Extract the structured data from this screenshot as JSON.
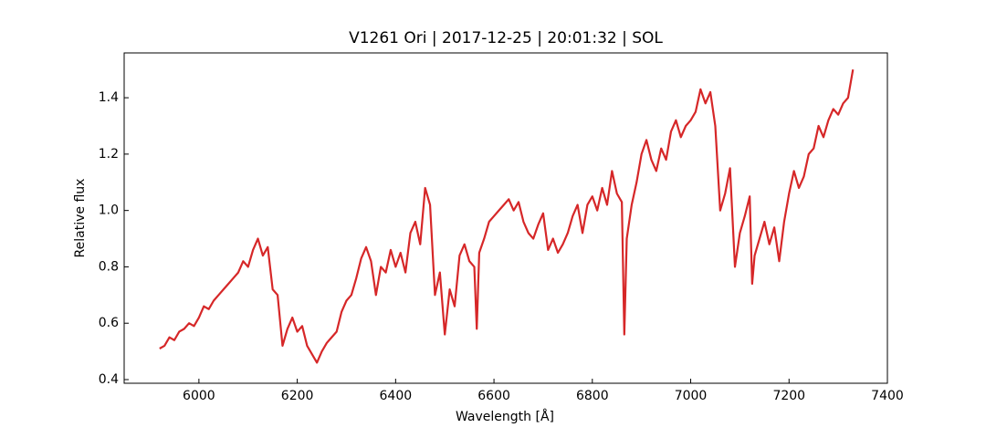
{
  "chart_data": {
    "type": "line",
    "title": "V1261 Ori | 2017-12-25 | 20:01:32 | SOL",
    "x_label": "Wavelength [Å]",
    "y_label": "Relative flux",
    "xlim": [
      5848,
      7400
    ],
    "ylim": [
      0.387,
      1.559
    ],
    "xticks": [
      6000,
      6200,
      6400,
      6600,
      6800,
      7000,
      7200,
      7400
    ],
    "yticks": [
      0.4,
      0.6,
      0.8,
      {
        "value": 1,
        "label": "1.0"
      },
      1.2,
      1.4
    ],
    "grid": false,
    "x": [
      5920,
      5930,
      5940,
      5950,
      5960,
      5970,
      5980,
      5990,
      6000,
      6010,
      6020,
      6030,
      6040,
      6050,
      6060,
      6070,
      6080,
      6090,
      6100,
      6110,
      6120,
      6130,
      6140,
      6150,
      6160,
      6170,
      6180,
      6190,
      6200,
      6210,
      6220,
      6230,
      6240,
      6250,
      6260,
      6270,
      6280,
      6290,
      6300,
      6310,
      6320,
      6330,
      6340,
      6350,
      6360,
      6370,
      6380,
      6390,
      6400,
      6410,
      6420,
      6430,
      6440,
      6450,
      6460,
      6470,
      6480,
      6490,
      6500,
      6510,
      6520,
      6530,
      6540,
      6550,
      6560,
      6565,
      6570,
      6580,
      6590,
      6600,
      6610,
      6620,
      6630,
      6640,
      6650,
      6660,
      6670,
      6680,
      6690,
      6700,
      6710,
      6720,
      6730,
      6740,
      6750,
      6760,
      6770,
      6780,
      6790,
      6800,
      6810,
      6820,
      6830,
      6840,
      6850,
      6860,
      6865,
      6870,
      6880,
      6890,
      6900,
      6910,
      6920,
      6930,
      6940,
      6950,
      6960,
      6970,
      6980,
      6990,
      7000,
      7010,
      7020,
      7030,
      7040,
      7050,
      7060,
      7070,
      7080,
      7090,
      7100,
      7110,
      7120,
      7125,
      7130,
      7140,
      7150,
      7160,
      7170,
      7180,
      7190,
      7200,
      7210,
      7220,
      7230,
      7240,
      7250,
      7260,
      7270,
      7280,
      7290,
      7300,
      7310,
      7320,
      7330
    ],
    "series": [
      {
        "name": "flux",
        "color": "#d62728",
        "values": [
          0.51,
          0.52,
          0.55,
          0.54,
          0.57,
          0.58,
          0.6,
          0.59,
          0.62,
          0.66,
          0.65,
          0.68,
          0.7,
          0.72,
          0.74,
          0.76,
          0.78,
          0.82,
          0.8,
          0.86,
          0.9,
          0.84,
          0.87,
          0.72,
          0.7,
          0.52,
          0.58,
          0.62,
          0.57,
          0.59,
          0.52,
          0.49,
          0.46,
          0.5,
          0.53,
          0.55,
          0.57,
          0.64,
          0.68,
          0.7,
          0.76,
          0.83,
          0.87,
          0.82,
          0.7,
          0.8,
          0.78,
          0.86,
          0.8,
          0.85,
          0.78,
          0.92,
          0.96,
          0.88,
          1.08,
          1.02,
          0.7,
          0.78,
          0.56,
          0.72,
          0.66,
          0.84,
          0.88,
          0.82,
          0.8,
          0.58,
          0.85,
          0.9,
          0.96,
          0.98,
          1.0,
          1.02,
          1.04,
          1.0,
          1.03,
          0.96,
          0.92,
          0.9,
          0.95,
          0.99,
          0.86,
          0.9,
          0.85,
          0.88,
          0.92,
          0.98,
          1.02,
          0.92,
          1.02,
          1.05,
          1.0,
          1.08,
          1.02,
          1.14,
          1.06,
          1.03,
          0.56,
          0.9,
          1.02,
          1.1,
          1.2,
          1.25,
          1.18,
          1.14,
          1.22,
          1.18,
          1.28,
          1.32,
          1.26,
          1.3,
          1.32,
          1.35,
          1.43,
          1.38,
          1.42,
          1.3,
          1.0,
          1.06,
          1.15,
          0.8,
          0.92,
          0.98,
          1.05,
          0.74,
          0.84,
          0.9,
          0.96,
          0.88,
          0.94,
          0.82,
          0.96,
          1.06,
          1.14,
          1.08,
          1.12,
          1.2,
          1.22,
          1.3,
          1.26,
          1.32,
          1.36,
          1.34,
          1.38,
          1.4,
          1.5
        ]
      }
    ]
  }
}
